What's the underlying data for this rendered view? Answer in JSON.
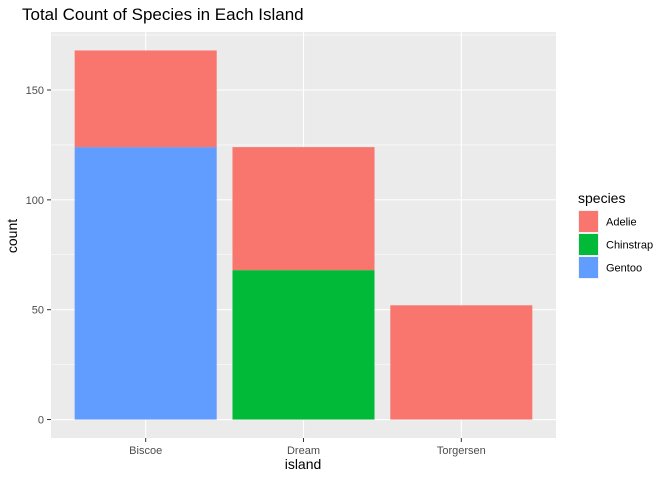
{
  "chart_data": {
    "type": "bar",
    "stacked": true,
    "title": "Total Count of Species in Each Island",
    "xlabel": "island",
    "ylabel": "count",
    "categories": [
      "Biscoe",
      "Dream",
      "Torgersen"
    ],
    "series": [
      {
        "name": "Adelie",
        "values": [
          44,
          56,
          52
        ],
        "color": "#F8766D"
      },
      {
        "name": "Chinstrap",
        "values": [
          0,
          68,
          0
        ],
        "color": "#00BA38"
      },
      {
        "name": "Gentoo",
        "values": [
          124,
          0,
          0
        ],
        "color": "#619CFF"
      }
    ],
    "stack_order_bottom_to_top": [
      "Gentoo",
      "Chinstrap",
      "Adelie"
    ],
    "yticks": [
      0,
      50,
      100,
      150
    ],
    "ylim": [
      -8.4,
      176.4
    ],
    "grid": true,
    "legend": {
      "title": "species",
      "position": "right"
    },
    "panel_background": "#EBEBEB"
  }
}
